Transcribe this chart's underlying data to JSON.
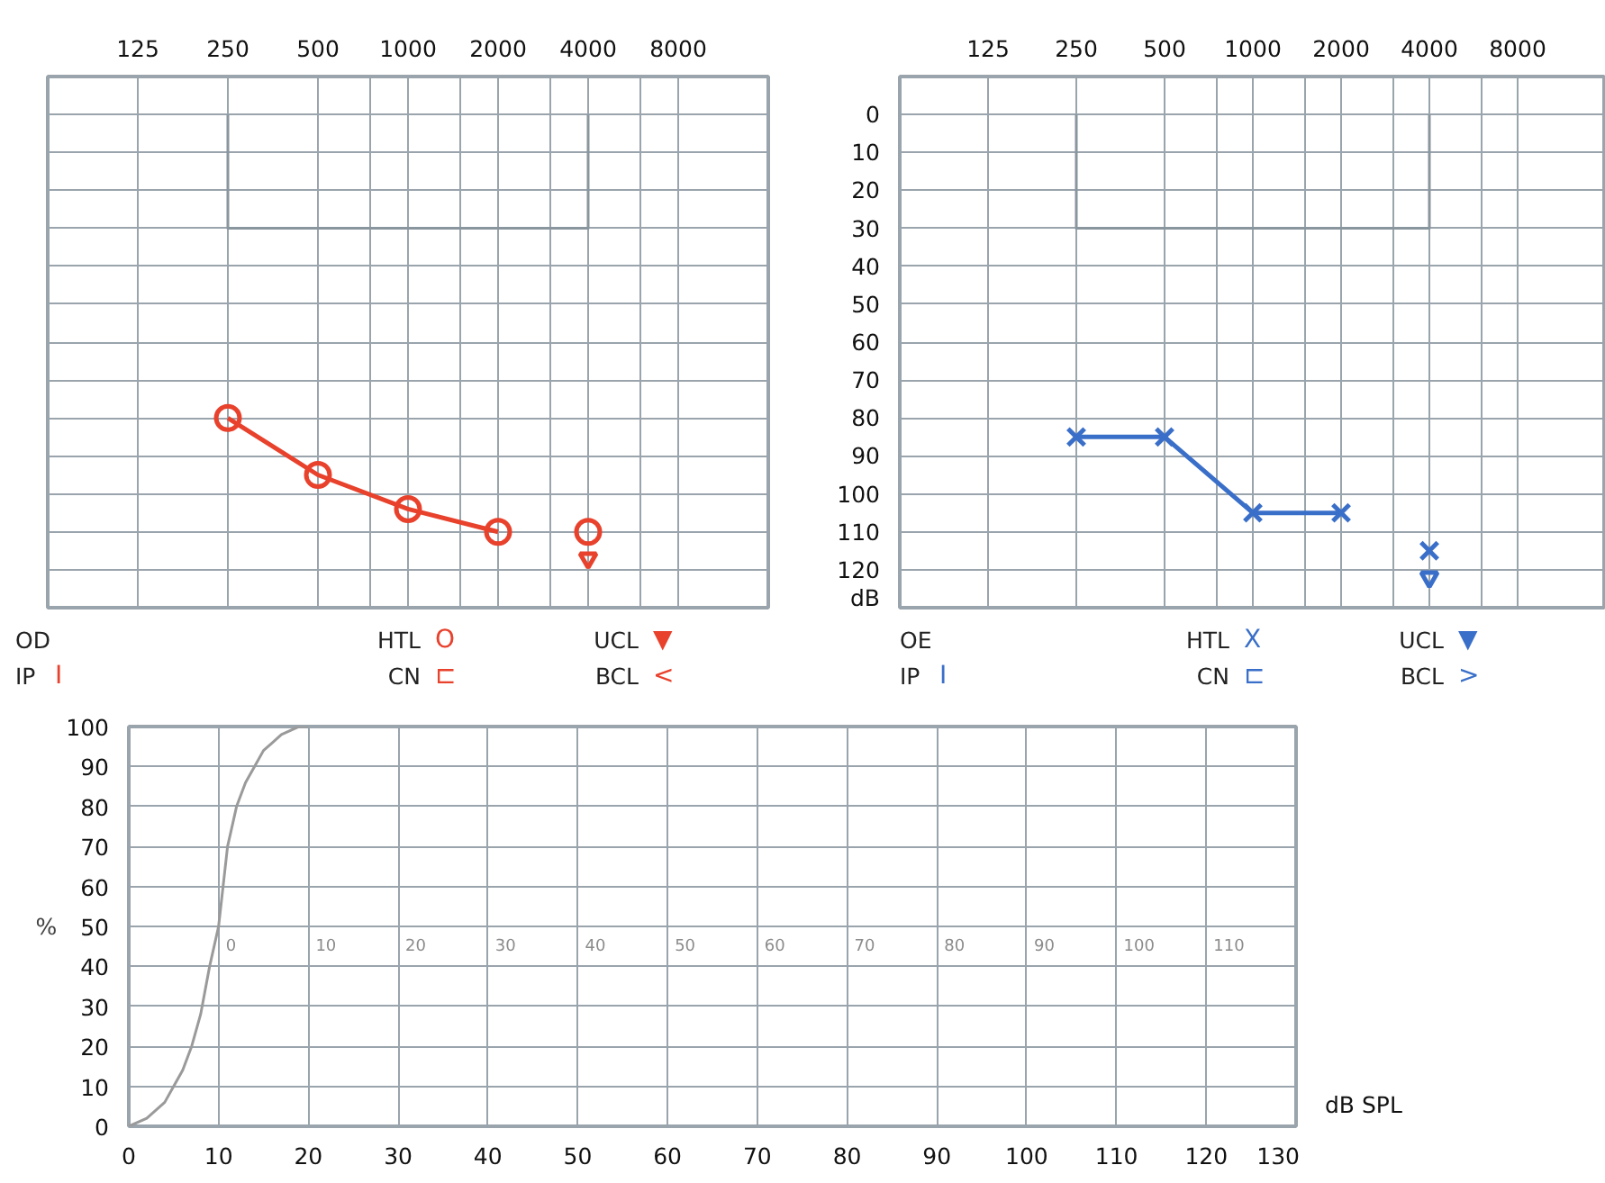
{
  "chart_data": [
    {
      "type": "line",
      "xlim": [
        62.5,
        16000
      ],
      "ylim": [
        130,
        -10
      ],
      "log": "x",
      "grid": true,
      "tick_labels": "x",
      "marker": "circle",
      "line_style": "solid",
      "xticks": [
        125,
        250,
        500,
        {
          "value": 750,
          "label": null
        },
        1000,
        {
          "value": 1500,
          "label": null
        },
        2000,
        {
          "value": 3000,
          "label": null
        },
        4000,
        {
          "value": 6000,
          "label": null
        },
        8000
      ],
      "yticks": [
        -10,
        0,
        10,
        20,
        30,
        40,
        50,
        60,
        70,
        80,
        90,
        100,
        110,
        120,
        130
      ],
      "series": [
        {
          "color": "#8a969e",
          "marker": "none",
          "x": [
            250,
            250,
            4000,
            4000
          ],
          "values": [
            0,
            30,
            30,
            0
          ]
        },
        {
          "color": "#e8412c",
          "marker": "circle",
          "x": [
            250,
            500,
            1000,
            2000
          ],
          "values": [
            80,
            95,
            104,
            110
          ]
        },
        {
          "type": "scatter",
          "color": "#e8412c",
          "marker": "circle",
          "x": [
            4000
          ],
          "values": [
            110
          ]
        },
        {
          "type": "scatter",
          "color": "#e8412c",
          "marker": "triangle",
          "x": [
            4000
          ],
          "values": [
            117
          ]
        }
      ],
      "annotations": [
        "OD",
        "HTL O",
        "UCL ▼",
        "IP I",
        "CN ⊏",
        "BCL <"
      ]
    },
    {
      "type": "line",
      "xlim": [
        62.5,
        16000
      ],
      "ylim": [
        130,
        -10
      ],
      "log": "x",
      "grid": true,
      "marker": "cross",
      "line_style": "solid",
      "xticks": [
        125,
        250,
        500,
        {
          "value": 750,
          "label": null
        },
        1000,
        {
          "value": 1500,
          "label": null
        },
        2000,
        {
          "value": 3000,
          "label": null
        },
        4000,
        {
          "value": 6000,
          "label": null
        },
        8000
      ],
      "yticks": [
        {
          "value": -10,
          "label": null
        },
        0,
        10,
        20,
        30,
        40,
        50,
        60,
        70,
        80,
        90,
        100,
        110,
        120,
        {
          "value": 130,
          "label": "dB"
        }
      ],
      "series": [
        {
          "color": "#8a969e",
          "marker": "none",
          "x": [
            250,
            250,
            4000,
            4000
          ],
          "values": [
            0,
            30,
            30,
            0
          ]
        },
        {
          "color": "#3a6fc9",
          "marker": "cross",
          "x": [
            250,
            500,
            1000,
            2000
          ],
          "values": [
            85,
            85,
            105,
            105
          ]
        },
        {
          "type": "scatter",
          "color": "#3a6fc9",
          "marker": "cross",
          "x": [
            4000
          ],
          "values": [
            115
          ]
        },
        {
          "type": "scatter",
          "color": "#3a6fc9",
          "marker": "triangle",
          "x": [
            4000
          ],
          "values": [
            122
          ]
        }
      ],
      "annotations": [
        "OE",
        "HTL X",
        "UCL ▼",
        "IP I",
        "CN ⊏",
        "BCL >"
      ]
    },
    {
      "type": "line",
      "xlim": [
        0,
        130
      ],
      "ylim": [
        0,
        100
      ],
      "grid": true,
      "marker": "none",
      "line_style": "solid",
      "xlabel": "dB SPL",
      "ylabel": "%",
      "xticks": [
        0,
        10,
        20,
        30,
        40,
        50,
        60,
        70,
        80,
        90,
        100,
        110,
        120,
        130
      ],
      "yticks": [
        0,
        10,
        20,
        30,
        40,
        50,
        60,
        70,
        80,
        90,
        100
      ],
      "series": [
        {
          "color": "#9a9a9a",
          "x": [
            0,
            2,
            4,
            5,
            6,
            7,
            8,
            9,
            10,
            10.5,
            11,
            12,
            13,
            14,
            15,
            16,
            17,
            18,
            19,
            20
          ],
          "values": [
            0,
            2,
            6,
            10,
            14,
            20,
            28,
            40,
            50,
            60,
            70,
            80,
            86,
            90,
            94,
            96,
            98,
            99,
            100,
            100
          ]
        }
      ],
      "annotations": [
        "0",
        "10",
        "20",
        "30",
        "40",
        "50",
        "60",
        "70",
        "80",
        "90",
        "100",
        "110"
      ]
    }
  ]
}
